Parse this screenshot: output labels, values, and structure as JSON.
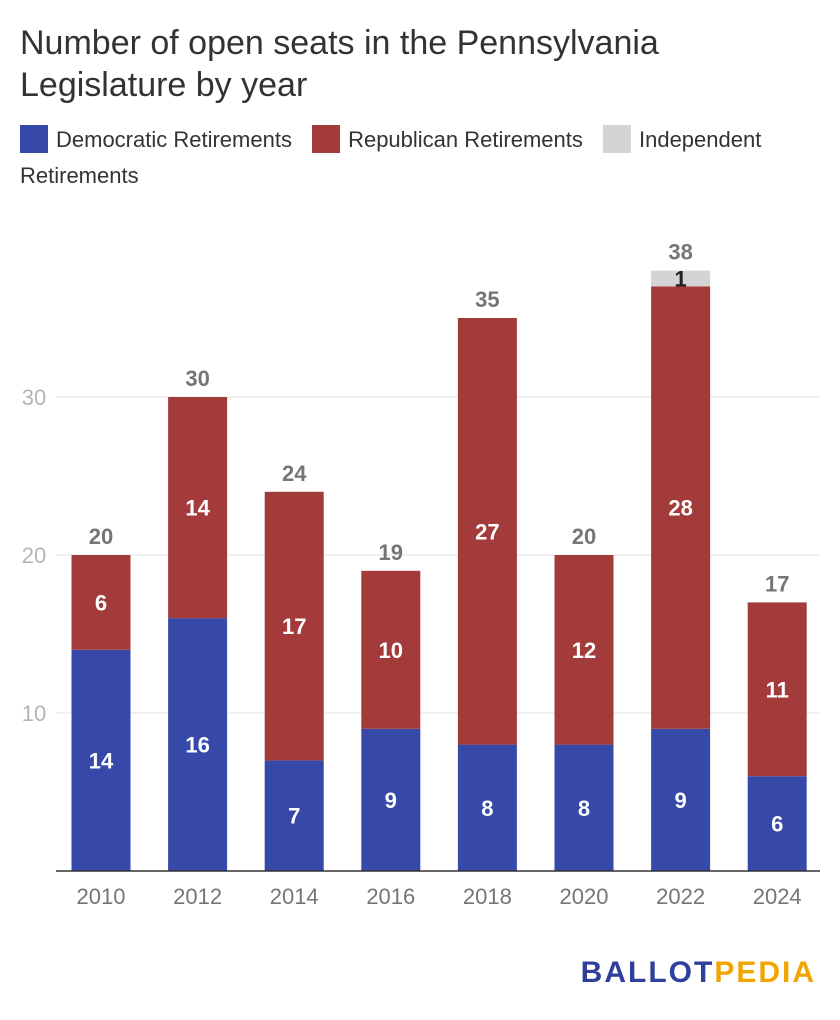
{
  "title": "Number of open seats in the Pennsylvania Legislature by year",
  "legend": [
    {
      "label": "Democratic Retirements",
      "color": "#3649a8"
    },
    {
      "label": "Republican Retirements",
      "color": "#a43b3b"
    },
    {
      "label": "Independent Retirements",
      "color": "#d4d4d4"
    }
  ],
  "logo": {
    "part1": "BALLOT",
    "part2": "PEDIA"
  },
  "chart_data": {
    "type": "bar",
    "stacked": true,
    "title": "Number of open seats in the Pennsylvania Legislature by year",
    "xlabel": "",
    "ylabel": "",
    "categories": [
      "2010",
      "2012",
      "2014",
      "2016",
      "2018",
      "2020",
      "2022",
      "2024"
    ],
    "series": [
      {
        "name": "Democratic Retirements",
        "color": "#3649a8",
        "values": [
          14,
          16,
          7,
          9,
          8,
          8,
          9,
          6
        ]
      },
      {
        "name": "Republican Retirements",
        "color": "#a43b3b",
        "values": [
          6,
          14,
          17,
          10,
          27,
          12,
          28,
          11
        ]
      },
      {
        "name": "Independent Retirements",
        "color": "#d4d4d4",
        "values": [
          0,
          0,
          0,
          0,
          0,
          0,
          1,
          0
        ]
      }
    ],
    "totals": [
      20,
      30,
      24,
      19,
      35,
      20,
      38,
      17
    ],
    "y_ticks": [
      10,
      20,
      30
    ],
    "ylim": [
      0,
      40
    ],
    "grid": true,
    "legend_position": "top-left"
  }
}
